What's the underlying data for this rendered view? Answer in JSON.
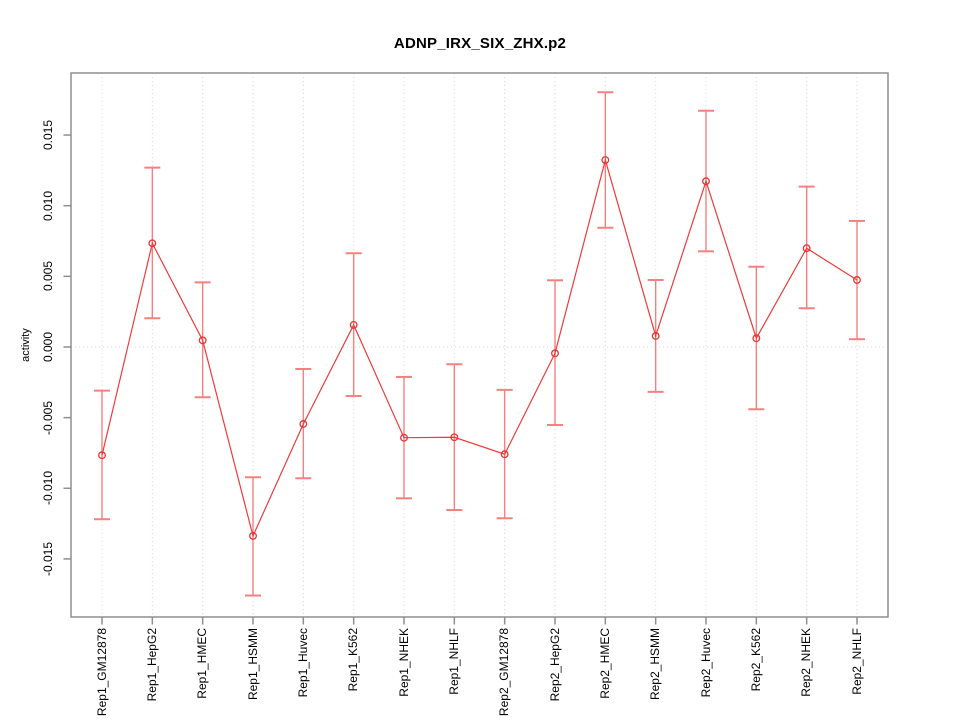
{
  "figure": {
    "title": "ADNP_IRX_SIX_ZHX.p2",
    "ylabel": "activity"
  },
  "chart_data": {
    "type": "line",
    "title": "ADNP_IRX_SIX_ZHX.p2",
    "xlabel": "",
    "ylabel": "activity",
    "legend": "none",
    "grid": "vertical dotted gridlines at each category; dotted horizontal line at y=0",
    "categories": [
      "Rep1_GM12878",
      "Rep1_HepG2",
      "Rep1_HMEC",
      "Rep1_HSMM",
      "Rep1_Huvec",
      "Rep1_K562",
      "Rep1_NHEK",
      "Rep1_NHLF",
      "Rep2_GM12878",
      "Rep2_HepG2",
      "Rep2_HMEC",
      "Rep2_HSMM",
      "Rep2_Huvec",
      "Rep2_K562",
      "Rep2_NHEK",
      "Rep2_NHLF"
    ],
    "series": [
      {
        "name": "activity",
        "values": [
          -0.00766,
          0.00734,
          0.00047,
          -0.01337,
          -0.00545,
          0.00156,
          -0.00642,
          -0.00639,
          -0.00759,
          -0.00045,
          0.01323,
          0.00078,
          0.01173,
          0.00062,
          0.00699,
          0.00474
        ],
        "error_low": [
          -0.01219,
          0.00203,
          -0.00356,
          -0.01759,
          -0.00929,
          -0.00347,
          -0.01071,
          -0.01154,
          -0.01212,
          -0.00552,
          0.00844,
          -0.00318,
          0.00677,
          -0.00441,
          0.00274,
          0.00055
        ],
        "error_high": [
          -0.00309,
          0.01269,
          0.00457,
          -0.00922,
          -0.00156,
          0.00663,
          -0.00212,
          -0.00122,
          -0.00304,
          0.00472,
          0.01803,
          0.00474,
          0.01672,
          0.00568,
          0.01135,
          0.00892
        ]
      }
    ],
    "yticks": [
      -0.015,
      -0.01,
      -0.005,
      0,
      0.005,
      0.01,
      0.015
    ],
    "ytick_labels": [
      "-0.015",
      "-0.010",
      "-0.005",
      "0.000",
      "0.005",
      "0.010",
      "0.015"
    ],
    "ylim": [
      -0.01911,
      0.01939
    ],
    "colors": {
      "line": "#ef3b3b",
      "point": "#e63535",
      "error_bar": "#f58080",
      "grid": "#d9d9d9",
      "axis": "#8f8f8f",
      "text": "#000000"
    }
  }
}
